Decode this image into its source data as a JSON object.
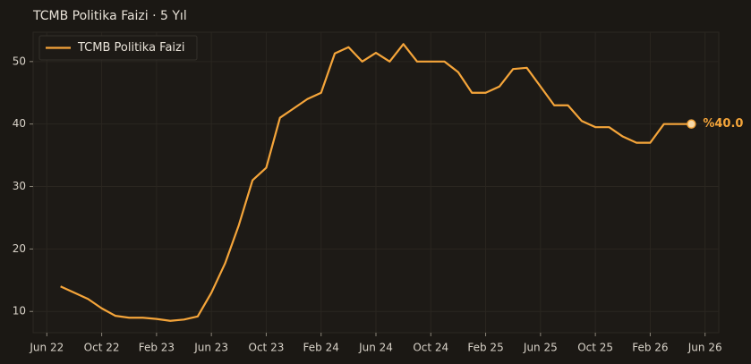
{
  "chart_data": {
    "type": "line",
    "title": "TCMB Politika Faizi · 5 Yıl",
    "x": [
      "2022-07",
      "2022-08",
      "2022-09",
      "2022-10",
      "2022-11",
      "2022-12",
      "2023-01",
      "2023-02",
      "2023-03",
      "2023-04",
      "2023-05",
      "2023-06",
      "2023-07",
      "2023-08",
      "2023-09",
      "2023-10",
      "2023-11",
      "2023-12",
      "2024-01",
      "2024-02",
      "2024-03",
      "2024-04",
      "2024-05",
      "2024-06",
      "2024-07",
      "2024-08",
      "2024-09",
      "2024-10",
      "2024-11",
      "2024-12",
      "2025-01",
      "2025-02",
      "2025-03",
      "2025-04",
      "2025-05",
      "2025-06",
      "2025-07",
      "2025-08",
      "2025-09",
      "2025-10",
      "2025-11",
      "2025-12",
      "2026-01",
      "2026-02",
      "2026-03",
      "2026-04",
      "2026-05"
    ],
    "series": [
      {
        "name": "TCMB Politika Faizi",
        "color": "#f5a53a",
        "values": [
          14,
          13,
          12,
          10.5,
          9.3,
          9,
          9,
          8.8,
          8.5,
          8.7,
          9.2,
          13,
          17.7,
          23.8,
          31,
          33,
          41,
          42.5,
          44,
          45,
          51.3,
          52.3,
          50,
          51.4,
          50,
          52.8,
          50,
          50,
          50,
          48.3,
          45,
          45,
          46,
          48.8,
          49,
          46,
          43,
          43,
          40.5,
          39.5,
          39.5,
          38,
          37,
          37,
          40,
          40,
          40
        ],
        "value_labels": [
          null,
          null,
          null,
          null,
          null,
          null,
          null,
          null,
          null,
          null,
          null,
          null,
          null,
          null,
          null,
          null,
          null,
          null,
          null,
          null,
          null,
          null,
          null,
          null,
          null,
          null,
          null,
          null,
          null,
          null,
          null,
          null,
          null,
          null,
          null,
          null,
          null,
          null,
          null,
          null,
          null,
          null,
          null,
          null,
          null,
          null,
          "%40.0"
        ]
      }
    ],
    "xlim": [
      "2022-05",
      "2026-07"
    ],
    "xticks": [
      {
        "value": "2022-06",
        "label": "Jun 22"
      },
      {
        "value": "2022-10",
        "label": "Oct 22"
      },
      {
        "value": "2023-02",
        "label": "Feb 23"
      },
      {
        "value": "2023-06",
        "label": "Jun 23"
      },
      {
        "value": "2023-10",
        "label": "Oct 23"
      },
      {
        "value": "2024-02",
        "label": "Feb 24"
      },
      {
        "value": "2024-06",
        "label": "Jun 24"
      },
      {
        "value": "2024-10",
        "label": "Oct 24"
      },
      {
        "value": "2025-02",
        "label": "Feb 25"
      },
      {
        "value": "2025-06",
        "label": "Jun 25"
      },
      {
        "value": "2025-10",
        "label": "Oct 25"
      },
      {
        "value": "2026-02",
        "label": "Feb 26"
      },
      {
        "value": "2026-06",
        "label": "Jun 26"
      }
    ],
    "ylim": [
      6.6,
      54.7
    ],
    "yticks": [
      10,
      20,
      30,
      40,
      50
    ],
    "grid": true,
    "legend": "upper left"
  }
}
